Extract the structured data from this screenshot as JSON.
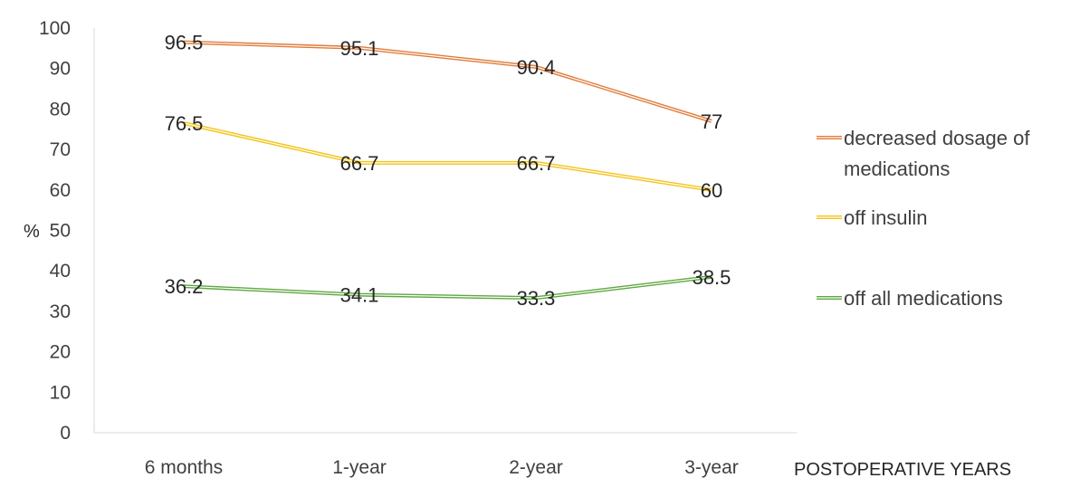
{
  "chart_data": {
    "type": "line",
    "categories": [
      "6 months",
      "1-year",
      "2-year",
      "3-year"
    ],
    "series": [
      {
        "name": "decreased dosage of medications",
        "legend_lines": [
          "decreased dosage of",
          "medications"
        ],
        "values": [
          96.5,
          95.1,
          90.4,
          77
        ],
        "labels": [
          "96.5",
          "95.1",
          "90.4",
          "77"
        ],
        "color": "#E07B39"
      },
      {
        "name": "off insulin",
        "legend_lines": [
          "off insulin"
        ],
        "values": [
          76.5,
          66.7,
          66.7,
          60
        ],
        "labels": [
          "76.5",
          "66.7",
          "66.7",
          "60"
        ],
        "color": "#F2C419"
      },
      {
        "name": "off all medications",
        "legend_lines": [
          "off all medications"
        ],
        "values": [
          36.2,
          34.1,
          33.3,
          38.5
        ],
        "labels": [
          "36.2",
          "34.1",
          "33.3",
          "38.5"
        ],
        "color": "#5FA740"
      }
    ],
    "xlabel": "POSTOPERATIVE YEARS",
    "ylabel": "%",
    "ylim": [
      0,
      100
    ],
    "yticks": [
      0,
      10,
      20,
      30,
      40,
      50,
      60,
      70,
      80,
      90,
      100
    ],
    "ytick_labels": [
      "0",
      "10",
      "20",
      "30",
      "40",
      "50",
      "60",
      "70",
      "80",
      "90",
      "100"
    ],
    "grid": false,
    "legend": "right",
    "axis_color": "#D9D9D9"
  }
}
